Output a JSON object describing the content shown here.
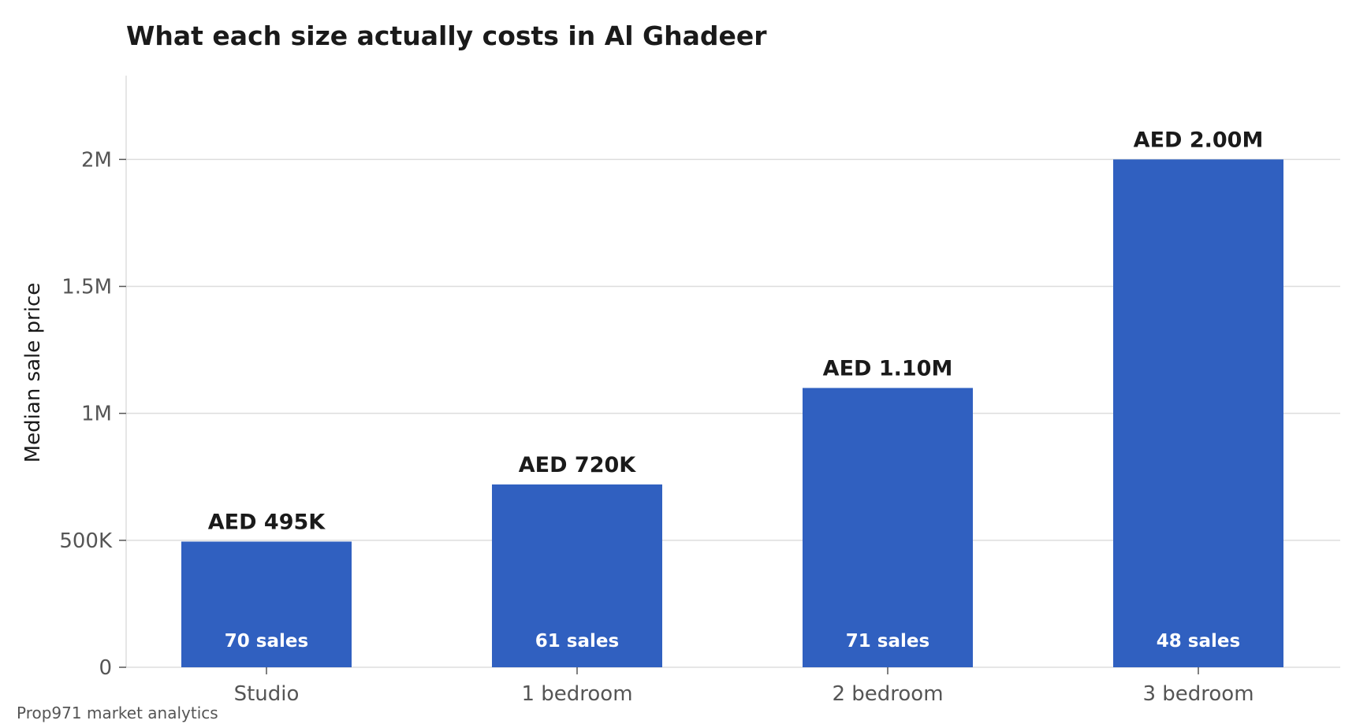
{
  "chart_data": {
    "type": "bar",
    "title": "What each size actually costs in Al Ghadeer",
    "xlabel": "",
    "ylabel": "Median sale price",
    "categories": [
      "Studio",
      "1 bedroom",
      "2 bedroom",
      "3 bedroom"
    ],
    "values": [
      495000,
      720000,
      1100000,
      2000000
    ],
    "value_labels": [
      "AED 495K",
      "AED 720K",
      "AED 1.10M",
      "AED 2.00M"
    ],
    "sales_counts": [
      70,
      61,
      71,
      48
    ],
    "sales_labels": [
      "70 sales",
      "61 sales",
      "71 sales",
      "48 sales"
    ],
    "ylim": [
      0,
      2330000
    ],
    "yticks": [
      0,
      500000,
      1000000,
      1500000,
      2000000
    ],
    "ytick_labels": [
      "0",
      "500K",
      "1M",
      "1.5M",
      "2M"
    ],
    "grid": "horizontal",
    "bar_color": "#3060c0"
  },
  "footer": {
    "source": "Prop971 market analytics"
  }
}
